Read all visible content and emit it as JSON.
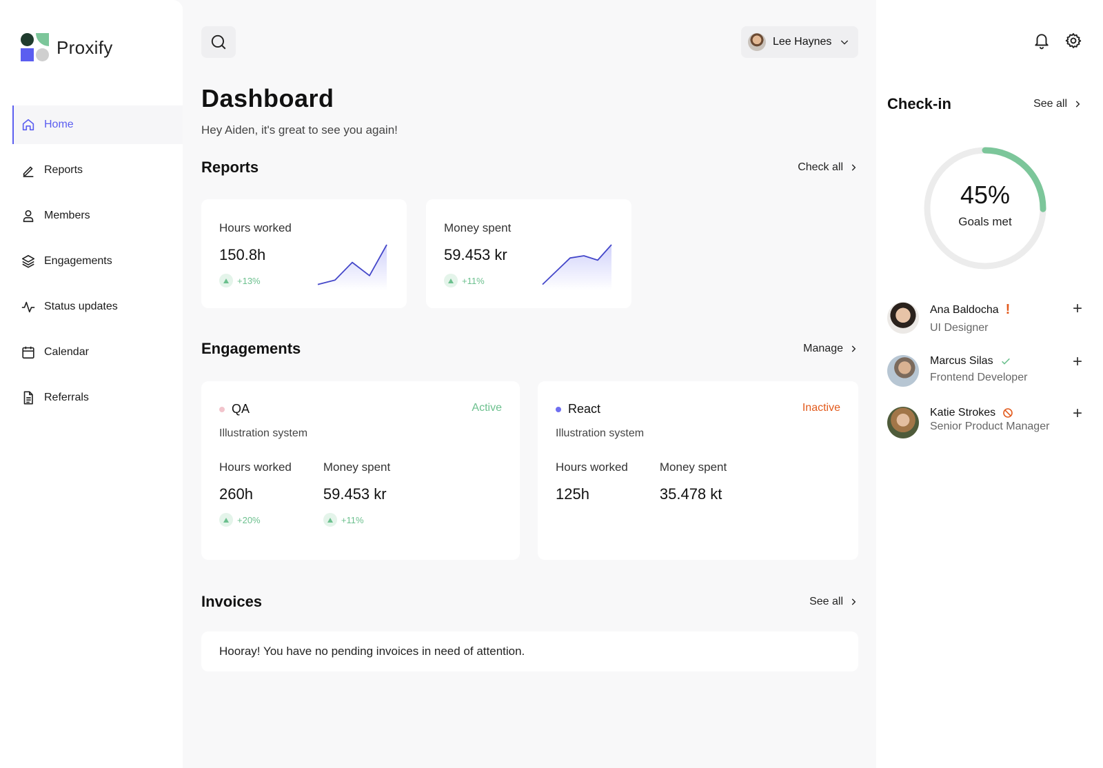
{
  "brand": {
    "name": "Proxify"
  },
  "sidebar": {
    "items": [
      {
        "label": "Home",
        "icon": "home-icon",
        "active": true
      },
      {
        "label": "Reports",
        "icon": "pencil-icon"
      },
      {
        "label": "Members",
        "icon": "user-icon"
      },
      {
        "label": "Engagements",
        "icon": "layers-icon"
      },
      {
        "label": "Status updates",
        "icon": "activity-icon"
      },
      {
        "label": "Calendar",
        "icon": "calendar-icon"
      },
      {
        "label": "Referrals",
        "icon": "document-icon"
      }
    ]
  },
  "header": {
    "user_name": "Lee Haynes"
  },
  "page": {
    "title": "Dashboard",
    "subtitle": "Hey Aiden, it's great to see you again!"
  },
  "reports": {
    "title": "Reports",
    "link": "Check all",
    "cards": [
      {
        "label": "Hours worked",
        "value": "150.8h",
        "delta": "+13%",
        "trend": [
          2,
          4,
          12,
          6,
          20
        ]
      },
      {
        "label": "Money spent",
        "value": "59.453 kr",
        "delta": "+11%",
        "trend": [
          2,
          8,
          14,
          15,
          13,
          20
        ]
      }
    ]
  },
  "engagements": {
    "title": "Engagements",
    "link": "Manage",
    "cards": [
      {
        "name": "QA",
        "dot_color": "#f2c4cc",
        "status": "Active",
        "status_color": "#6cc08e",
        "subtitle": "Illustration system",
        "hours_label": "Hours worked",
        "hours_value": "260h",
        "hours_delta": "+20%",
        "money_label": "Money spent",
        "money_value": "59.453 kr",
        "money_delta": "+11%"
      },
      {
        "name": "React",
        "dot_color": "#6f6ff0",
        "status": "Inactive",
        "status_color": "#e25a1c",
        "subtitle": "Illustration system",
        "hours_label": "Hours worked",
        "hours_value": "125h",
        "money_label": "Money spent",
        "money_value": "35.478 kt"
      }
    ]
  },
  "invoices": {
    "title": "Invoices",
    "link": "See all",
    "message": "Hooray! You have no pending invoices in need of attention."
  },
  "checkin": {
    "title": "Check-in",
    "link": "See all",
    "goal_percent": 45,
    "goal_text": "45%",
    "goal_label": "Goals met",
    "gauge_color": "#7cc69a",
    "people": [
      {
        "name": "Ana Baldocha",
        "role": "UI Designer",
        "status_icon": "exclamation-icon"
      },
      {
        "name": "Marcus Silas",
        "role": "Frontend Developer",
        "status_icon": "check-icon"
      },
      {
        "name": "Katie Strokes",
        "role": "Senior Product Manager",
        "status_icon": "blocked-icon"
      }
    ]
  },
  "colors": {
    "accent": "#5b5ef0",
    "positive": "#6cc08e",
    "negative": "#e25a1c"
  }
}
